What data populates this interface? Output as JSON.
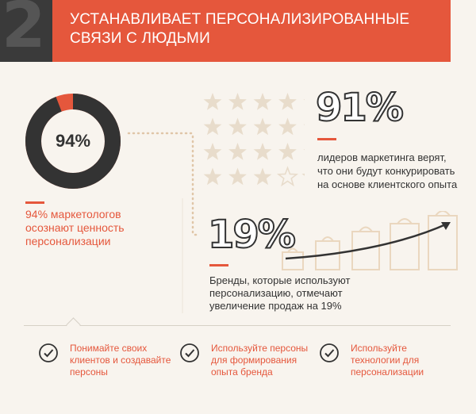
{
  "header": {
    "number": "2",
    "title_line1": "УСТАНАВЛИВАЕТ ПЕРСОНАЛИЗИРОВАННЫЕ",
    "title_line2": "СВЯЗИ С ЛЮДЬМИ"
  },
  "stat_94": {
    "value_label": "94%",
    "percent": 94,
    "line1": "94% маркетологов",
    "line2": "осознают ценность",
    "line3": "персонализации"
  },
  "stat_91": {
    "value_label": "91%",
    "stars_filled": 18,
    "stars_total": 20,
    "line1": "лидеров маркетинга верят,",
    "line2": "что они будут конкурировать",
    "line3": "на основе клиентского опыта"
  },
  "stat_19": {
    "value_label": "19%",
    "line1": "Бренды, которые используют",
    "line2": "персонализацию, отмечают",
    "line3": "увеличение продаж на 19%"
  },
  "tips": [
    {
      "line1": "Понимайте своих",
      "line2": "клиентов и создавайте",
      "line3": "персоны",
      "icon": "check-circle-icon"
    },
    {
      "line1": "Используйте персоны",
      "line2": "для формирования",
      "line3": "опыта бренда",
      "icon": "check-circle-icon"
    },
    {
      "line1": "Используйте",
      "line2": "технологии для",
      "line3": "персонализации",
      "icon": "check-circle-icon"
    }
  ],
  "colors": {
    "accent": "#e5573c",
    "dark": "#333333",
    "star": "#e8dccb",
    "background": "#f8f4ee"
  }
}
